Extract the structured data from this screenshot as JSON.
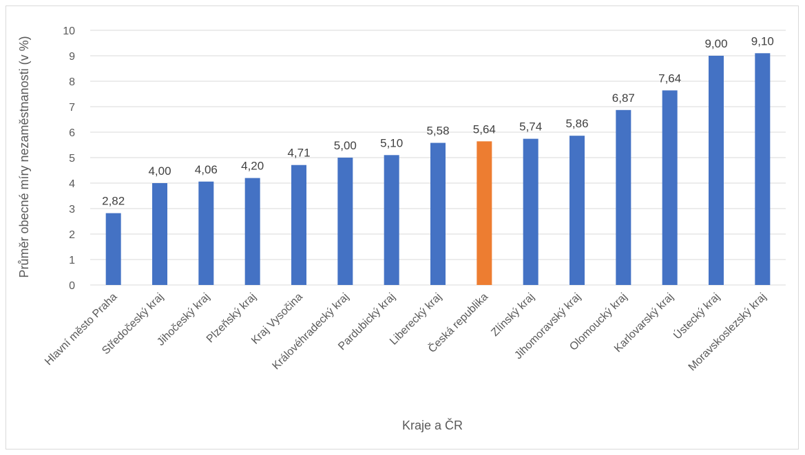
{
  "chart_data": {
    "type": "bar",
    "title": "",
    "xlabel": "Kraje a ČR",
    "ylabel": "Průměr obecné míry nezaměstnanosti (v %)",
    "ylim": [
      0,
      10
    ],
    "yticks": [
      "0",
      "1",
      "2",
      "3",
      "4",
      "5",
      "6",
      "7",
      "8",
      "9",
      "10"
    ],
    "grid": true,
    "legend": "none",
    "categories": [
      "Hlavní město Praha",
      "Středočeský kraj",
      "Jihočeský kraj",
      "Plzeňský kraj",
      "Kraj Vysočina",
      "Královéhradecký kraj",
      "Pardubický kraj",
      "Liberecký kraj",
      "Česká republika",
      "Zlínský kraj",
      "Jihomoravský kraj",
      "Olomoucký kraj",
      "Karlovarský kraj",
      "Ústecký kraj",
      "Moravskoslezský kraj"
    ],
    "values": [
      2.82,
      4.0,
      4.06,
      4.2,
      4.71,
      5.0,
      5.1,
      5.58,
      5.64,
      5.74,
      5.86,
      6.87,
      7.64,
      9.0,
      9.1
    ],
    "data_labels": [
      "2,82",
      "4,00",
      "4,06",
      "4,20",
      "4,71",
      "5,00",
      "5,10",
      "5,58",
      "5,64",
      "5,74",
      "5,86",
      "6,87",
      "7,64",
      "9,00",
      "9,10"
    ],
    "colors": {
      "default": "#4472c4",
      "highlight": "#ed7d31",
      "highlight_category": "Česká republika",
      "grid": "#d9d9d9"
    }
  }
}
